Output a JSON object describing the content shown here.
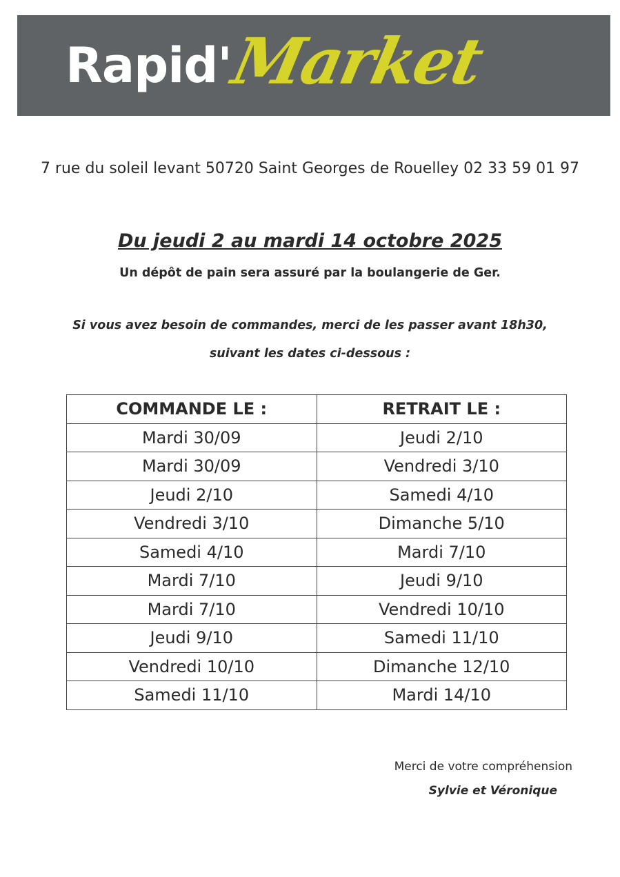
{
  "logo": {
    "part1": "Rapid'",
    "part2": "Market",
    "background": "#5f6366",
    "accent": "#d6d42a"
  },
  "address": "7 rue du soleil levant 50720 Saint Georges de Rouelley 02 33 59 01 97",
  "title": "Du jeudi 2 au mardi 14 octobre 2025",
  "subtitle": "Un dépôt de pain sera assuré par la boulangerie de Ger.",
  "notice_line1": "Si vous avez besoin de commandes, merci de les passer avant 18h30,",
  "notice_line2": "suivant les dates ci-dessous :",
  "table": {
    "headers": [
      "COMMANDE LE :",
      "RETRAIT  LE :"
    ],
    "rows": [
      [
        "Mardi 30/09",
        "Jeudi 2/10"
      ],
      [
        "Mardi 30/09",
        "Vendredi 3/10"
      ],
      [
        "Jeudi 2/10",
        "Samedi 4/10"
      ],
      [
        "Vendredi 3/10",
        "Dimanche 5/10"
      ],
      [
        "Samedi 4/10",
        "Mardi 7/10"
      ],
      [
        "Mardi 7/10",
        "Jeudi 9/10"
      ],
      [
        "Mardi 7/10",
        "Vendredi 10/10"
      ],
      [
        "Jeudi 9/10",
        "Samedi 11/10"
      ],
      [
        "Vendredi 10/10",
        "Dimanche 12/10"
      ],
      [
        "Samedi 11/10",
        "Mardi 14/10"
      ]
    ]
  },
  "footer": {
    "thanks": "Merci de votre compréhension",
    "signature": "Sylvie et Véronique"
  }
}
